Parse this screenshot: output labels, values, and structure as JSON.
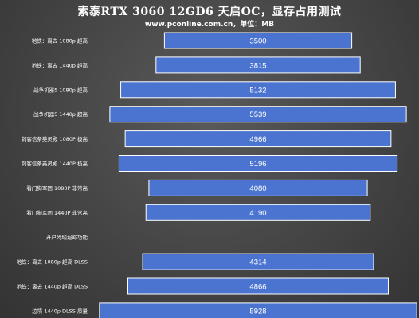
{
  "colors": {
    "bar": "#4a74d0",
    "bar_border": "#ffffff",
    "background": "#444444"
  },
  "chart_data": {
    "type": "bar",
    "orientation": "horizontal",
    "title": "索泰RTX 3060 12GD6 天启OC，显存占用测试",
    "subtitle": "www.pconline.com.cn，单位：MB",
    "categories": [
      "地铁：离去 1080p 超高",
      "地铁：离去 1440p 超高",
      "战争机器5 1080p 超高",
      "战争机器5 1440p 超高",
      "刺客信条英灵殿 1080P 极高",
      "刺客信条英灵殿 1440P 极高",
      "看门狗军团 1080P 非常高",
      "看门狗军团 1440P 非常高",
      "开户光线追踪功能",
      "地铁：离去 1080p 超高 DLSS",
      "地铁：离去 1440p 超高 DLSS",
      "边境 1440p DLSS 质量"
    ],
    "values": [
      3500,
      3815,
      5132,
      5539,
      4966,
      5196,
      4080,
      4190,
      null,
      4314,
      4866,
      5928
    ],
    "value_labels": [
      "3500",
      "3815",
      "5132",
      "5539",
      "4966",
      "5196",
      "4080",
      "4190",
      "",
      "4314",
      "4866",
      "5928"
    ],
    "layout": "centered",
    "xlabel": "",
    "ylabel": "",
    "grid": false,
    "legend": "none"
  }
}
